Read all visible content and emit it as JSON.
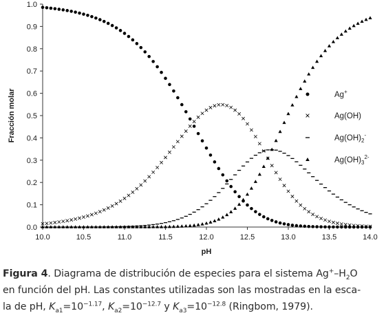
{
  "chart_data": {
    "type": "scatter",
    "xlabel": "pH",
    "ylabel": "Fracción molar",
    "xlim": [
      10.0,
      14.0
    ],
    "ylim": [
      0.0,
      1.0
    ],
    "x_ticks": [
      "10.0",
      "10.5",
      "11.0",
      "11.5",
      "12.0",
      "12.5",
      "13.0",
      "13.5",
      "14.0"
    ],
    "y_ticks": [
      "0.0",
      "0.1",
      "0.2",
      "0.3",
      "0.4",
      "0.5",
      "0.6",
      "0.7",
      "0.8",
      "0.9",
      "1.0"
    ],
    "grid": false,
    "legend_position": "right",
    "x_step": 0.05,
    "log_constants": {
      "Ka1": -1.17,
      "Ka2": -12.7,
      "Ka3": -12.8
    },
    "series": [
      {
        "name": "Ag⁺",
        "marker": "circle",
        "color": "#000000"
      },
      {
        "name": "Ag(OH)",
        "marker": "cross",
        "color": "#000000"
      },
      {
        "name": "Ag(OH)2-",
        "marker": "dash",
        "color": "#000000"
      },
      {
        "name": "Ag(OH)32-",
        "marker": "triangle",
        "color": "#000000"
      }
    ],
    "legend": [
      {
        "base": "Ag",
        "sup": "+",
        "sub": ""
      },
      {
        "base": "Ag(OH)",
        "sup": "",
        "sub": ""
      },
      {
        "base": "Ag(OH)",
        "sub": "2",
        "sup": "-"
      },
      {
        "base": "Ag(OH)",
        "sub": "3",
        "sup": "2-"
      }
    ]
  },
  "caption": {
    "figure_label": "Figura 4",
    "line1_text": ". Diagrama de distribución de especies para el sistema Ag",
    "line1_sup": "+",
    "line1_text2": "–H",
    "line1_sub": "2",
    "line1_text3": "O",
    "line2": "en función del pH. Las constantes utilizadas son las mostradas en la esca-",
    "line3_prefix": "la de pH, ",
    "k_symbol": "K",
    "k1_sub": "a1",
    "k1_val": "=10",
    "k1_exp": "−1.17",
    "k2_sub": "a2",
    "k2_val": "=10",
    "k2_exp": "−12.7",
    "and_word": " y ",
    "k3_sub": "a3",
    "k3_val": "=10",
    "k3_exp": "−12.8",
    "source": " (Ringbom, 1979)."
  }
}
